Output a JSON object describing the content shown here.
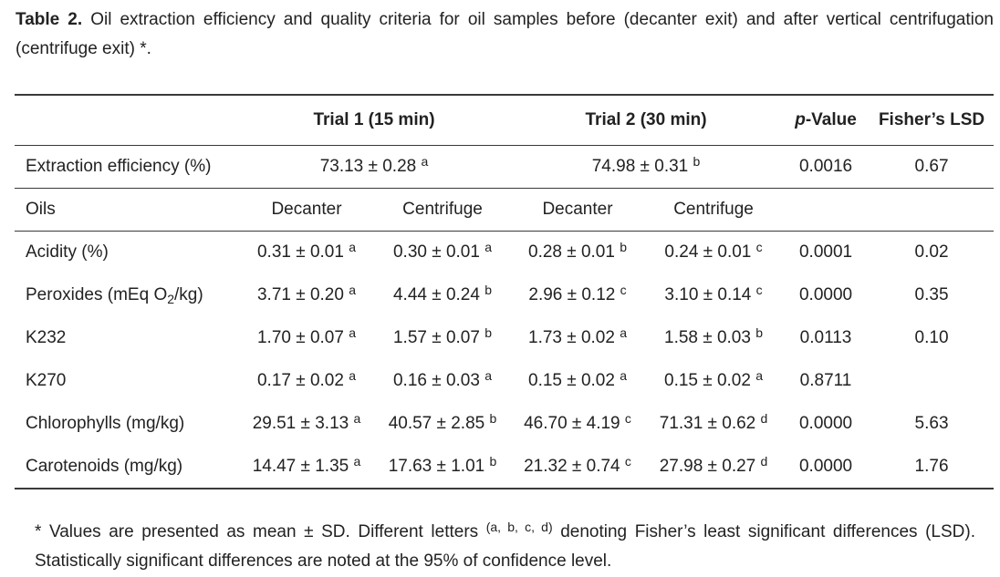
{
  "caption": {
    "label": "Table 2.",
    "text": "Oil extraction efficiency and quality criteria for oil samples before (decanter exit) and after vertical centrifugation (centrifuge exit) *."
  },
  "header": {
    "trial1": "Trial 1 (15 min)",
    "trial2": "Trial 2 (30 min)",
    "pvalue_italic": "p",
    "pvalue_rest": "-Value",
    "lsd": "Fisher’s LSD"
  },
  "efficiency": {
    "label": "Extraction efficiency (%)",
    "trial1": "73.13 ± 0.28",
    "trial1_sup": "a",
    "trial2": "74.98 ± 0.31",
    "trial2_sup": "b",
    "pvalue": "0.0016",
    "lsd": "0.67"
  },
  "subheader": {
    "label": "Oils",
    "cols": [
      "Decanter",
      "Centrifuge",
      "Decanter",
      "Centrifuge"
    ]
  },
  "rows": [
    {
      "label": "Acidity (%)",
      "cells": [
        {
          "v": "0.31 ± 0.01",
          "s": "a"
        },
        {
          "v": "0.30 ± 0.01",
          "s": "a"
        },
        {
          "v": "0.28 ± 0.01",
          "s": "b"
        },
        {
          "v": "0.24 ± 0.01",
          "s": "c"
        }
      ],
      "pvalue": "0.0001",
      "lsd": "0.02"
    },
    {
      "label_pre": "Peroxides (mEq O",
      "label_sub": "2",
      "label_post": "/kg)",
      "cells": [
        {
          "v": "3.71 ± 0.20",
          "s": "a"
        },
        {
          "v": "4.44 ± 0.24",
          "s": "b"
        },
        {
          "v": "2.96 ± 0.12",
          "s": "c"
        },
        {
          "v": "3.10 ± 0.14",
          "s": "c"
        }
      ],
      "pvalue": "0.0000",
      "lsd": "0.35"
    },
    {
      "label": "K232",
      "cells": [
        {
          "v": "1.70 ± 0.07",
          "s": "a"
        },
        {
          "v": "1.57 ± 0.07",
          "s": "b"
        },
        {
          "v": "1.73 ± 0.02",
          "s": "a"
        },
        {
          "v": "1.58 ± 0.03",
          "s": "b"
        }
      ],
      "pvalue": "0.0113",
      "lsd": "0.10"
    },
    {
      "label": "K270",
      "cells": [
        {
          "v": "0.17 ± 0.02",
          "s": "a"
        },
        {
          "v": "0.16 ± 0.03",
          "s": "a"
        },
        {
          "v": "0.15 ± 0.02",
          "s": "a"
        },
        {
          "v": "0.15 ± 0.02",
          "s": "a"
        }
      ],
      "pvalue": "0.8711",
      "lsd": ""
    },
    {
      "label": "Chlorophylls (mg/kg)",
      "cells": [
        {
          "v": "29.51 ± 3.13",
          "s": "a"
        },
        {
          "v": "40.57 ± 2.85",
          "s": "b"
        },
        {
          "v": "46.70 ± 4.19",
          "s": "c"
        },
        {
          "v": "71.31 ± 0.62",
          "s": "d"
        }
      ],
      "pvalue": "0.0000",
      "lsd": "5.63"
    },
    {
      "label": "Carotenoids (mg/kg)",
      "cells": [
        {
          "v": "14.47 ± 1.35",
          "s": "a"
        },
        {
          "v": "17.63 ± 1.01",
          "s": "b"
        },
        {
          "v": "21.32 ± 0.74",
          "s": "c"
        },
        {
          "v": "27.98 ± 0.27",
          "s": "d"
        }
      ],
      "pvalue": "0.0000",
      "lsd": "1.76"
    }
  ],
  "footnote": {
    "pre": "* Values are presented as mean ± SD. Different letters ",
    "sup": "(a, b, c, d)",
    "post": " denoting Fisher’s least significant differences (LSD). Statistically significant differences are noted at the 95% of confidence level."
  }
}
